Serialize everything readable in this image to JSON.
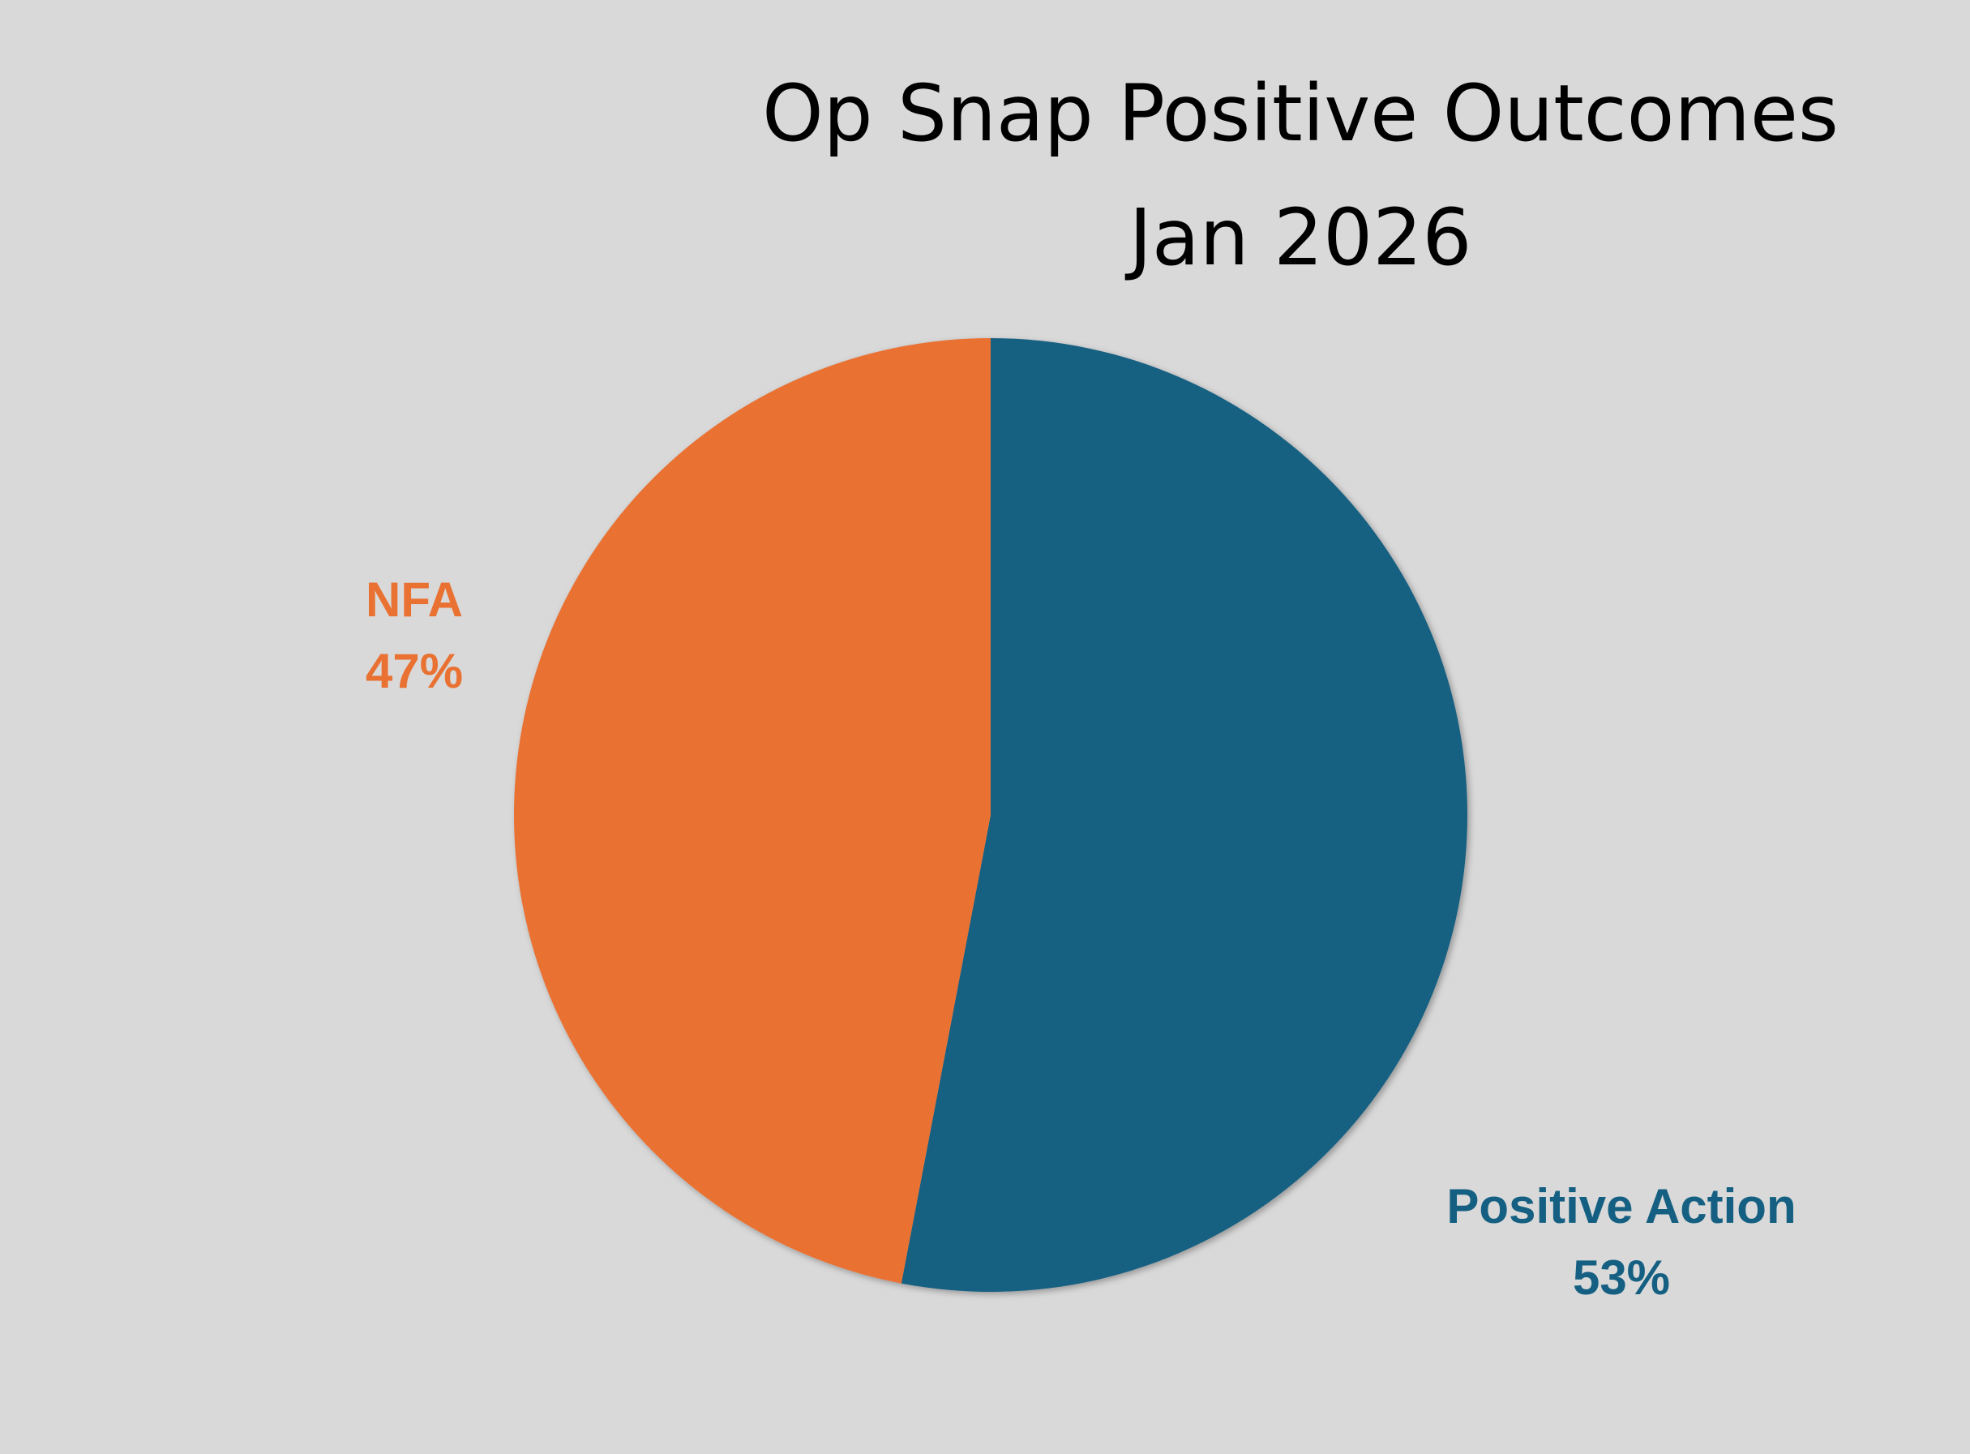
{
  "chart_data": {
    "type": "pie",
    "title": "Op Snap Positive Outcomes",
    "subtitle": "Jan 2026",
    "start_angle": "12 o'clock, clockwise",
    "slices": [
      {
        "label": "Positive Action",
        "value": 53,
        "value_label": "53%",
        "color": "#156082"
      },
      {
        "label": "NFA",
        "value": 47,
        "value_label": "47%",
        "color": "#e97132"
      }
    ],
    "legend": "none",
    "background": "#d9d9d9"
  }
}
